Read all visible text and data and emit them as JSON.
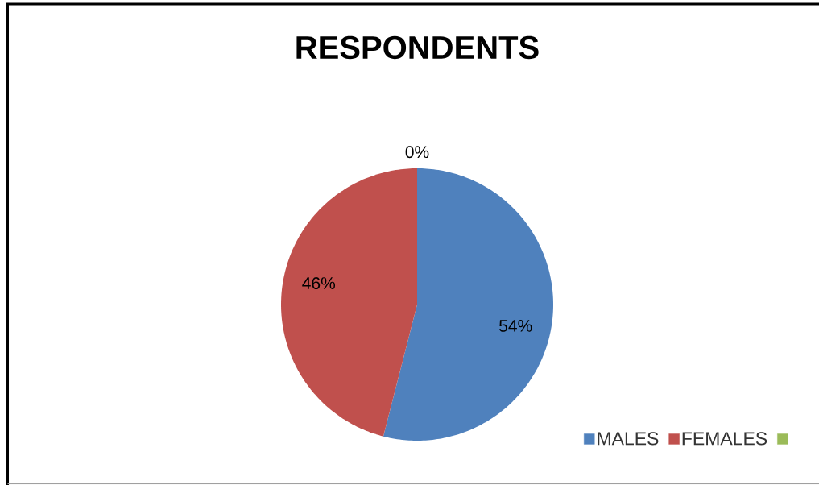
{
  "chart_data": {
    "type": "pie",
    "title": "RESPONDENTS",
    "categories": [
      "MALES",
      "FEMALES",
      null
    ],
    "values": [
      54,
      46,
      0
    ],
    "colors": [
      "#4f81bd",
      "#c0504d",
      "#9bbb59"
    ],
    "value_labels": [
      "54%",
      "46%",
      "0%"
    ],
    "legend": "bottom right"
  }
}
